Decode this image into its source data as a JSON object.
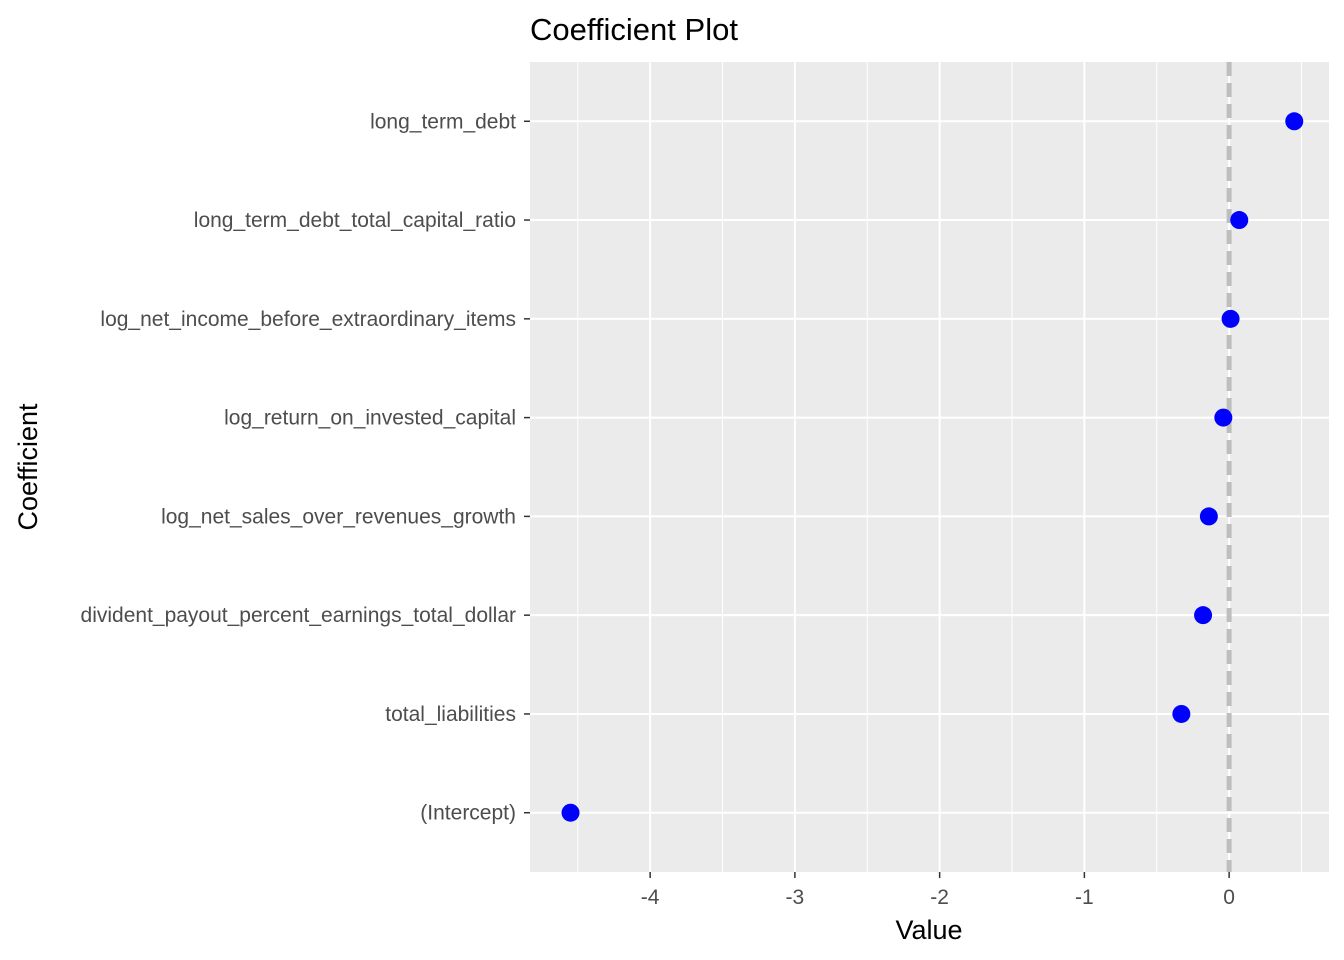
{
  "chart_data": {
    "type": "scatter",
    "title": "Coefficient Plot",
    "xlabel": "Value",
    "ylabel": "Coefficient",
    "xlim": [
      -4.83,
      0.69
    ],
    "x_ticks": [
      -4,
      -3,
      -2,
      -1,
      0
    ],
    "x_tick_labels": [
      "-4",
      "-3",
      "-2",
      "-1",
      "0"
    ],
    "reference_line": {
      "x": 0,
      "style": "dashed",
      "color": "#bebebe"
    },
    "point_color": "#0000ff",
    "panel_background": "#ebebeb",
    "grid": true,
    "categories": [
      "(Intercept)",
      "total_liabilities",
      "divident_payout_percent_earnings_total_dollar",
      "log_net_sales_over_revenues_growth",
      "log_return_on_invested_capital",
      "log_net_income_before_extraordinary_items",
      "long_term_debt_total_capital_ratio",
      "long_term_debt"
    ],
    "values": [
      -4.55,
      -0.33,
      -0.18,
      -0.14,
      -0.04,
      0.01,
      0.07,
      0.45
    ]
  }
}
